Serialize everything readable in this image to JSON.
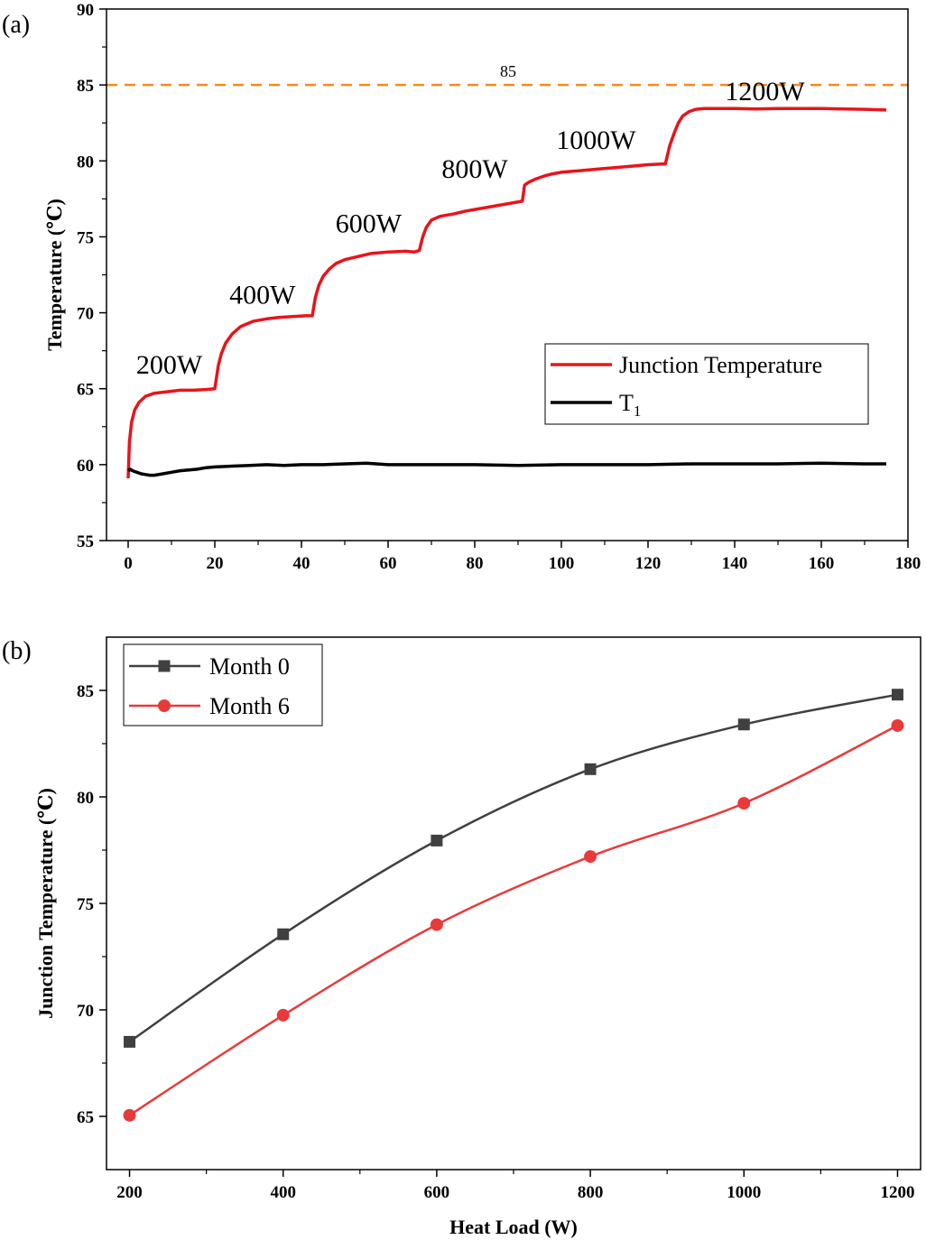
{
  "chart_data": [
    {
      "id": "a",
      "type": "line",
      "panel_label": "(a)",
      "xlabel": "",
      "ylabel": "Temperature (℃)",
      "xlim": [
        -5,
        180
      ],
      "ylim": [
        55,
        90
      ],
      "xticks": [
        0,
        20,
        40,
        60,
        80,
        100,
        120,
        140,
        160,
        180
      ],
      "yticks": [
        55,
        60,
        65,
        70,
        75,
        80,
        85,
        90
      ],
      "reference_line": {
        "value": 85,
        "label": "85",
        "color": "#f28a24",
        "style": "dashed"
      },
      "step_annotations": [
        {
          "label": "200W",
          "x": 9.5,
          "y": 66.0
        },
        {
          "label": "400W",
          "x": 31.0,
          "y": 70.6
        },
        {
          "label": "600W",
          "x": 55.5,
          "y": 75.3
        },
        {
          "label": "800W",
          "x": 80.0,
          "y": 78.9
        },
        {
          "label": "1000W",
          "x": 108.0,
          "y": 80.8
        },
        {
          "label": "1200W",
          "x": 147.0,
          "y": 84.0
        }
      ],
      "legend": {
        "position": "center-right"
      },
      "series": [
        {
          "name": "Junction Temperature",
          "color": "#e8141b",
          "x": [
            0,
            0.3,
            0.8,
            1.5,
            2.5,
            4,
            6,
            9,
            12,
            15,
            18,
            20,
            20.8,
            21.5,
            22.5,
            24,
            26,
            29,
            32,
            35,
            38,
            41,
            42.5,
            43.2,
            44,
            45,
            46.5,
            48,
            50,
            53,
            56,
            60,
            64,
            66,
            67.2,
            68,
            68.8,
            70,
            72,
            75,
            78,
            82,
            86,
            89,
            91,
            91.5,
            92.5,
            94,
            96,
            98,
            100,
            104,
            108,
            112,
            116,
            120,
            123,
            124,
            125,
            126,
            127,
            128,
            129.5,
            131,
            133,
            136,
            140,
            145,
            150,
            155,
            160,
            165,
            170,
            175
          ],
          "y": [
            59.1,
            61.5,
            62.8,
            63.6,
            64.1,
            64.5,
            64.7,
            64.8,
            64.9,
            64.9,
            64.95,
            65.0,
            66.5,
            67.3,
            68.0,
            68.6,
            69.1,
            69.45,
            69.6,
            69.7,
            69.75,
            69.8,
            69.8,
            71.0,
            71.8,
            72.4,
            72.9,
            73.25,
            73.5,
            73.7,
            73.9,
            74.0,
            74.05,
            74.0,
            74.1,
            75.0,
            75.6,
            76.1,
            76.35,
            76.5,
            76.7,
            76.9,
            77.1,
            77.25,
            77.35,
            78.4,
            78.6,
            78.8,
            79.0,
            79.15,
            79.25,
            79.35,
            79.45,
            79.55,
            79.65,
            79.75,
            79.8,
            79.8,
            81.0,
            81.8,
            82.5,
            82.95,
            83.25,
            83.4,
            83.45,
            83.45,
            83.45,
            83.42,
            83.45,
            83.45,
            83.45,
            83.42,
            83.4,
            83.35
          ]
        },
        {
          "name": "T1",
          "color": "#000000",
          "x": [
            0,
            0.5,
            1,
            2,
            3,
            4,
            5,
            6,
            8,
            10,
            12,
            14,
            16,
            18,
            20,
            24,
            28,
            32,
            36,
            40,
            45,
            50,
            55,
            60,
            70,
            80,
            90,
            100,
            110,
            120,
            130,
            140,
            150,
            160,
            170,
            175
          ],
          "y": [
            59.6,
            59.7,
            59.6,
            59.5,
            59.4,
            59.35,
            59.3,
            59.3,
            59.4,
            59.5,
            59.6,
            59.65,
            59.7,
            59.8,
            59.85,
            59.9,
            59.95,
            60.0,
            59.95,
            60.0,
            60.0,
            60.05,
            60.1,
            60.0,
            60.0,
            60.0,
            59.95,
            60.0,
            60.0,
            60.0,
            60.05,
            60.05,
            60.05,
            60.1,
            60.05,
            60.05
          ]
        }
      ]
    },
    {
      "id": "b",
      "type": "line",
      "panel_label": "(b)",
      "xlabel": "Heat Load (W)",
      "ylabel": "Junction Temperature (℃)",
      "xlim": [
        170,
        1230
      ],
      "ylim": [
        62.5,
        87.5
      ],
      "xticks": [
        200,
        400,
        600,
        800,
        1000,
        1200
      ],
      "yticks": [
        65,
        70,
        75,
        80,
        85
      ],
      "legend": {
        "position": "top-left"
      },
      "series": [
        {
          "name": "Month 0",
          "color": "#404040",
          "marker": "square",
          "x": [
            200,
            400,
            600,
            800,
            1000,
            1200
          ],
          "y": [
            68.5,
            73.55,
            77.95,
            81.3,
            83.4,
            84.8
          ]
        },
        {
          "name": "Month 6",
          "color": "#e83a3a",
          "marker": "circle",
          "x": [
            200,
            400,
            600,
            800,
            1000,
            1200
          ],
          "y": [
            65.05,
            69.75,
            74.0,
            77.2,
            79.7,
            83.35
          ]
        }
      ]
    }
  ]
}
